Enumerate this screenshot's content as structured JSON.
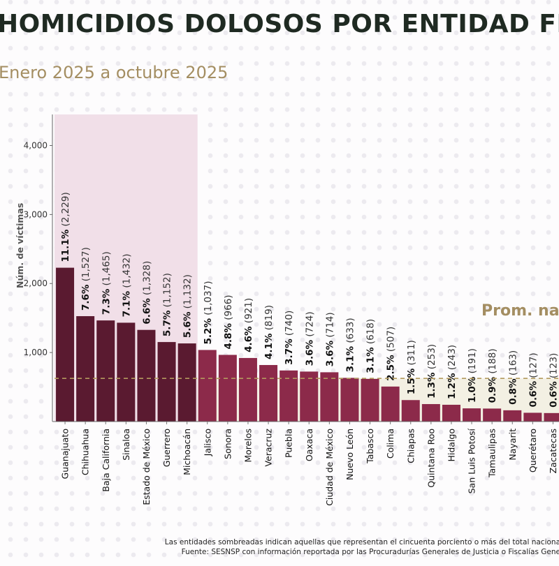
{
  "title": "HOMICIDIOS DOLOSOS POR ENTIDAD FE",
  "subtitle": "Enero 2025 a octubre 2025",
  "notes": [
    "Las entidades sombreadas indican aquellas que representan el cincuenta porciento o más del total naciona",
    "Fuente: SESNSP con información reportada por las Procuradurías Generales de Justicia o Fiscalías Gene"
  ],
  "colors": {
    "highlight_bar": "#5a1a30",
    "bar": "#8c2a4a",
    "highlight_band": "#f1dfe8",
    "average_band": "#f3f0e3",
    "average_line": "#b39a5e",
    "average_text": "#a48e62"
  },
  "chart_data": {
    "type": "bar",
    "ylabel": "Núm. de víctimas",
    "ylim": [
      0,
      4450
    ],
    "yticks": [
      1000,
      2000,
      3000,
      4000
    ],
    "ytick_labels": [
      "1,000",
      "2,000",
      "3,000",
      "4,000"
    ],
    "highlight_count": 7,
    "average": {
      "label": "Prom. na",
      "value": 625
    },
    "categories": [
      "Guanajuato",
      "Chihuahua",
      "Baja California",
      "Sinaloa",
      "Estado de México",
      "Guerrero",
      "Michoacán",
      "Jalisco",
      "Sonora",
      "Morelos",
      "Veracruz",
      "Puebla",
      "Oaxaca",
      "Ciudad de México",
      "Nuevo León",
      "Tabasco",
      "Colima",
      "Chiapas",
      "Quintana Roo",
      "Hidalgo",
      "San Luis Potosí",
      "Tamaulipas",
      "Nayarit",
      "Querétaro",
      "Zacatecas"
    ],
    "values": [
      2229,
      1527,
      1465,
      1432,
      1328,
      1152,
      1132,
      1037,
      966,
      921,
      819,
      740,
      724,
      714,
      633,
      618,
      507,
      311,
      253,
      243,
      191,
      188,
      163,
      127,
      123
    ],
    "percent_labels": [
      "11.1%",
      "7.6%",
      "7.3%",
      "7.1%",
      "6.6%",
      "5.7%",
      "5.6%",
      "5.2%",
      "4.8%",
      "4.6%",
      "4.1%",
      "3.7%",
      "3.6%",
      "3.6%",
      "3.1%",
      "3.1%",
      "2.5%",
      "1.5%",
      "1.3%",
      "1.2%",
      "1.0%",
      "0.9%",
      "0.8%",
      "0.6%",
      "0.6%"
    ],
    "value_labels": [
      "(2,229)",
      "(1,527)",
      "(1,465)",
      "(1,432)",
      "(1,328)",
      "(1,152)",
      "(1,132)",
      "(1,037)",
      "(966)",
      "(921)",
      "(819)",
      "(740)",
      "(724)",
      "(714)",
      "(633)",
      "(618)",
      "(507)",
      "(311)",
      "(253)",
      "(243)",
      "(191)",
      "(188)",
      "(163)",
      "(127)",
      "(123)"
    ]
  }
}
